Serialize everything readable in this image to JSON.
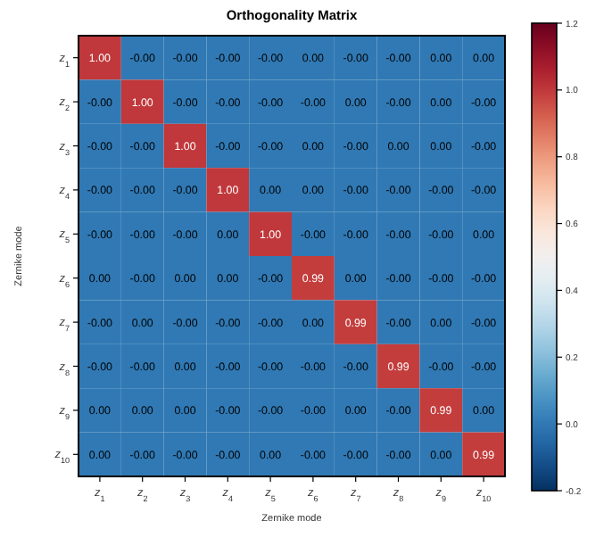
{
  "chart_data": {
    "type": "heatmap",
    "title": "Orthogonality Matrix",
    "xlabel": "Zernike mode",
    "ylabel": "Zernike mode",
    "clabel": null,
    "categories": [
      "z$_{1}$",
      "z$_{2}$",
      "z$_{3}$",
      "z$_{4}$",
      "z$_{5}$",
      "z$_{6}$",
      "z$_{7}$",
      "z$_{8}$",
      "z$_{9}$",
      "z$_{10}$"
    ],
    "y_categories": [
      "z$_{1}$",
      "z$_{2}$",
      "z$_{3}$",
      "z$_{4}$",
      "z$_{5}$",
      "z$_{6}$",
      "z$_{7}$",
      "z$_{8}$",
      "z$_{9}$",
      "z$_{10}$"
    ],
    "cells": [
      [
        1,
        0,
        0,
        0,
        0,
        0,
        0,
        0,
        0,
        0
      ],
      [
        0,
        1,
        0,
        0,
        0,
        0,
        0,
        0,
        0,
        0
      ],
      [
        0,
        0,
        1,
        0,
        0,
        0,
        0,
        0,
        0,
        0
      ],
      [
        0,
        0,
        0,
        1,
        0,
        0,
        0,
        0,
        0,
        0
      ],
      [
        0,
        0,
        0,
        0,
        1,
        0,
        0,
        0,
        0,
        0
      ],
      [
        0,
        0,
        0,
        0,
        0,
        0.99,
        0,
        0,
        0,
        0
      ],
      [
        0,
        0,
        0,
        0,
        0,
        0,
        0.99,
        0,
        0,
        0
      ],
      [
        0,
        0,
        0,
        0,
        0,
        0,
        0,
        0.99,
        0,
        0
      ],
      [
        0,
        0,
        0,
        0,
        0,
        0,
        0,
        0,
        0.99,
        0
      ],
      [
        0,
        0,
        0,
        0,
        0,
        0,
        0,
        0,
        0,
        0.99
      ]
    ],
    "cell_labels": [
      [
        "1.00",
        "-0.00",
        "-0.00",
        "-0.00",
        "-0.00",
        "0.00",
        "-0.00",
        "-0.00",
        "0.00",
        "0.00"
      ],
      [
        "-0.00",
        "1.00",
        "-0.00",
        "-0.00",
        "-0.00",
        "-0.00",
        "0.00",
        "-0.00",
        "0.00",
        "-0.00"
      ],
      [
        "-0.00",
        "-0.00",
        "1.00",
        "-0.00",
        "-0.00",
        "0.00",
        "-0.00",
        "0.00",
        "0.00",
        "-0.00"
      ],
      [
        "-0.00",
        "-0.00",
        "-0.00",
        "1.00",
        "0.00",
        "0.00",
        "-0.00",
        "-0.00",
        "-0.00",
        "-0.00"
      ],
      [
        "-0.00",
        "-0.00",
        "-0.00",
        "0.00",
        "1.00",
        "-0.00",
        "-0.00",
        "-0.00",
        "-0.00",
        "0.00"
      ],
      [
        "0.00",
        "-0.00",
        "0.00",
        "0.00",
        "-0.00",
        "0.99",
        "0.00",
        "-0.00",
        "-0.00",
        "-0.00"
      ],
      [
        "-0.00",
        "0.00",
        "-0.00",
        "-0.00",
        "-0.00",
        "0.00",
        "0.99",
        "-0.00",
        "0.00",
        "-0.00"
      ],
      [
        "-0.00",
        "-0.00",
        "0.00",
        "-0.00",
        "-0.00",
        "-0.00",
        "-0.00",
        "0.99",
        "-0.00",
        "-0.00"
      ],
      [
        "0.00",
        "0.00",
        "0.00",
        "-0.00",
        "-0.00",
        "-0.00",
        "0.00",
        "-0.00",
        "0.99",
        "0.00"
      ],
      [
        "0.00",
        "-0.00",
        "-0.00",
        "-0.00",
        "0.00",
        "-0.00",
        "-0.00",
        "-0.00",
        "0.00",
        "0.99"
      ]
    ],
    "clim": [
      -0.2,
      1.2
    ],
    "cticks": [
      -0.2,
      {
        "value": 0,
        "label": "0.0"
      },
      0.2,
      0.4,
      0.6,
      0.8,
      {
        "value": 1,
        "label": "1.0"
      },
      1.2
    ]
  }
}
